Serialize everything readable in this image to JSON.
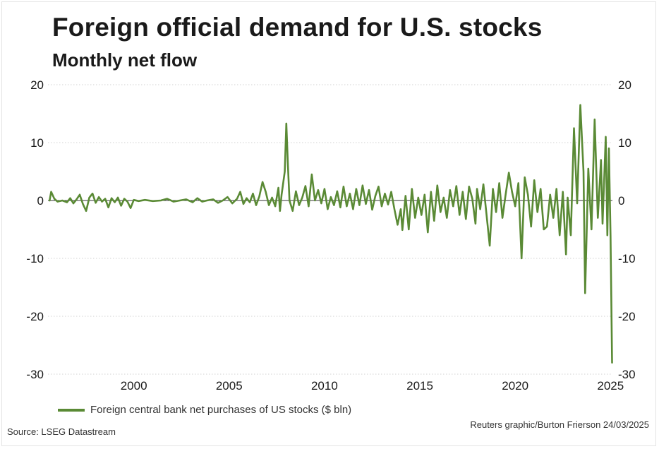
{
  "title": "Foreign official demand for U.S. stocks",
  "subtitle": "Monthly net flow",
  "legend_label": "Foreign central bank net purchases of US stocks ($ bln)",
  "source": "Source: LSEG Datastream",
  "credit": "Reuters graphic/Burton Frierson 24/03/2025",
  "colors": {
    "line": "#5a8a35",
    "grid": "#d2d2d2",
    "zero": "#333333",
    "text": "#1a1a1a"
  },
  "chart_data": {
    "type": "line",
    "title": "Foreign official demand for U.S. stocks",
    "subtitle": "Monthly net flow",
    "xlabel": "",
    "ylabel": "",
    "ylim": [
      -30,
      20
    ],
    "xlim": [
      1995.5,
      2025.1
    ],
    "y_ticks": [
      "20",
      "10",
      "0",
      "-10",
      "-20",
      "-30"
    ],
    "x_ticks": [
      "2000",
      "2005",
      "2010",
      "2015",
      "2020",
      "2025"
    ],
    "grid": "horizontal",
    "y_axis_both_sides": true,
    "legend_position": "bottom-left",
    "series": [
      {
        "name": "Foreign central bank net purchases of US stocks ($ bln)",
        "points": [
          [
            "1995-08",
            0
          ],
          [
            "1995-09",
            1.5
          ],
          [
            "1995-11",
            0.3
          ],
          [
            "1996-01",
            -0.2
          ],
          [
            "1996-04",
            0
          ],
          [
            "1996-07",
            -0.3
          ],
          [
            "1996-09",
            0.4
          ],
          [
            "1996-11",
            -0.5
          ],
          [
            "1997-01",
            0.2
          ],
          [
            "1997-03",
            1.0
          ],
          [
            "1997-05",
            -0.6
          ],
          [
            "1997-07",
            -1.8
          ],
          [
            "1997-09",
            0.5
          ],
          [
            "1997-11",
            1.2
          ],
          [
            "1998-01",
            -0.4
          ],
          [
            "1998-03",
            0.6
          ],
          [
            "1998-05",
            -0.2
          ],
          [
            "1998-07",
            0.3
          ],
          [
            "1998-09",
            -1.2
          ],
          [
            "1998-11",
            0.4
          ],
          [
            "1999-01",
            -0.3
          ],
          [
            "1999-03",
            0.5
          ],
          [
            "1999-05",
            -0.9
          ],
          [
            "1999-07",
            0.3
          ],
          [
            "1999-09",
            -0.2
          ],
          [
            "1999-11",
            -1.3
          ],
          [
            "2000-01",
            0.1
          ],
          [
            "2000-04",
            -0.1
          ],
          [
            "2000-08",
            0.1
          ],
          [
            "2001-01",
            -0.1
          ],
          [
            "2001-06",
            0
          ],
          [
            "2001-10",
            0.3
          ],
          [
            "2002-02",
            -0.2
          ],
          [
            "2002-06",
            0
          ],
          [
            "2002-10",
            0.2
          ],
          [
            "2003-02",
            -0.3
          ],
          [
            "2003-05",
            0.4
          ],
          [
            "2003-08",
            -0.2
          ],
          [
            "2003-11",
            0
          ],
          [
            "2004-03",
            0.2
          ],
          [
            "2004-06",
            -0.4
          ],
          [
            "2004-09",
            0
          ],
          [
            "2004-12",
            0.6
          ],
          [
            "2005-03",
            -0.5
          ],
          [
            "2005-06",
            0.3
          ],
          [
            "2005-08",
            1.5
          ],
          [
            "2005-10",
            -0.6
          ],
          [
            "2005-12",
            0.4
          ],
          [
            "2006-02",
            -0.3
          ],
          [
            "2006-04",
            1.2
          ],
          [
            "2006-06",
            -0.8
          ],
          [
            "2006-08",
            0.7
          ],
          [
            "2006-10",
            3.2
          ],
          [
            "2006-12",
            1.5
          ],
          [
            "2007-02",
            -0.8
          ],
          [
            "2007-04",
            0.5
          ],
          [
            "2007-06",
            -1.0
          ],
          [
            "2007-08",
            2.2
          ],
          [
            "2007-09",
            -1.8
          ],
          [
            "2007-10",
            1.0
          ],
          [
            "2007-12",
            5.0
          ],
          [
            "2008-01",
            13.3
          ],
          [
            "2008-02",
            6.0
          ],
          [
            "2008-03",
            0
          ],
          [
            "2008-05",
            -1.8
          ],
          [
            "2008-07",
            1.6
          ],
          [
            "2008-09",
            -0.8
          ],
          [
            "2008-11",
            0.5
          ],
          [
            "2009-01",
            2.5
          ],
          [
            "2009-03",
            -1.0
          ],
          [
            "2009-05",
            4.5
          ],
          [
            "2009-07",
            0
          ],
          [
            "2009-09",
            1.8
          ],
          [
            "2009-11",
            -0.5
          ],
          [
            "2010-01",
            2.0
          ],
          [
            "2010-03",
            -1.5
          ],
          [
            "2010-05",
            0.6
          ],
          [
            "2010-07",
            -0.8
          ],
          [
            "2010-09",
            1.6
          ],
          [
            "2010-11",
            -1.2
          ],
          [
            "2011-01",
            2.4
          ],
          [
            "2011-03",
            -1.0
          ],
          [
            "2011-05",
            1.2
          ],
          [
            "2011-07",
            -1.5
          ],
          [
            "2011-09",
            2.0
          ],
          [
            "2011-11",
            -0.8
          ],
          [
            "2012-01",
            2.6
          ],
          [
            "2012-03",
            -0.6
          ],
          [
            "2012-05",
            1.8
          ],
          [
            "2012-07",
            -1.6
          ],
          [
            "2012-09",
            0.8
          ],
          [
            "2012-11",
            2.4
          ],
          [
            "2013-01",
            -1.0
          ],
          [
            "2013-03",
            1.2
          ],
          [
            "2013-05",
            -0.7
          ],
          [
            "2013-07",
            1.5
          ],
          [
            "2013-09",
            -1.5
          ],
          [
            "2013-11",
            -4.2
          ],
          [
            "2014-01",
            -1.5
          ],
          [
            "2014-02",
            -5.1
          ],
          [
            "2014-04",
            0.8
          ],
          [
            "2014-06",
            -5.0
          ],
          [
            "2014-08",
            2.0
          ],
          [
            "2014-10",
            -3.0
          ],
          [
            "2014-12",
            0.5
          ],
          [
            "2015-02",
            -2.5
          ],
          [
            "2015-04",
            1.0
          ],
          [
            "2015-06",
            -5.5
          ],
          [
            "2015-08",
            1.5
          ],
          [
            "2015-10",
            -3.5
          ],
          [
            "2015-12",
            2.6
          ],
          [
            "2016-02",
            -2.0
          ],
          [
            "2016-04",
            0.5
          ],
          [
            "2016-06",
            -3.0
          ],
          [
            "2016-08",
            1.8
          ],
          [
            "2016-10",
            -1.0
          ],
          [
            "2016-12",
            2.5
          ],
          [
            "2017-02",
            -2.5
          ],
          [
            "2017-04",
            1.5
          ],
          [
            "2017-06",
            -3.2
          ],
          [
            "2017-08",
            2.4
          ],
          [
            "2017-10",
            0.3
          ],
          [
            "2017-12",
            -4.0
          ],
          [
            "2018-01",
            2.0
          ],
          [
            "2018-03",
            -1.5
          ],
          [
            "2018-05",
            2.8
          ],
          [
            "2018-07",
            -2.5
          ],
          [
            "2018-09",
            -7.8
          ],
          [
            "2018-11",
            2.0
          ],
          [
            "2019-01",
            -2.0
          ],
          [
            "2019-03",
            3.0
          ],
          [
            "2019-05",
            -3.0
          ],
          [
            "2019-07",
            1.0
          ],
          [
            "2019-09",
            4.8
          ],
          [
            "2019-11",
            1.5
          ],
          [
            "2020-01",
            -1.0
          ],
          [
            "2020-03",
            3.0
          ],
          [
            "2020-05",
            -10.0
          ],
          [
            "2020-07",
            4.0
          ],
          [
            "2020-09",
            1.0
          ],
          [
            "2020-11",
            -4.5
          ],
          [
            "2021-01",
            3.5
          ],
          [
            "2021-03",
            -2.0
          ],
          [
            "2021-05",
            2.0
          ],
          [
            "2021-07",
            -5.0
          ],
          [
            "2021-09",
            -4.5
          ],
          [
            "2021-11",
            1.0
          ],
          [
            "2022-01",
            -3.0
          ],
          [
            "2022-03",
            2.0
          ],
          [
            "2022-05",
            -6.0
          ],
          [
            "2022-07",
            1.5
          ],
          [
            "2022-09",
            -9.3
          ],
          [
            "2022-10",
            0.5
          ],
          [
            "2022-12",
            -6.0
          ],
          [
            "2023-02",
            12.5
          ],
          [
            "2023-04",
            -0.5
          ],
          [
            "2023-06",
            16.5
          ],
          [
            "2023-08",
            5.0
          ],
          [
            "2023-09",
            -16.0
          ],
          [
            "2023-11",
            5.5
          ],
          [
            "2024-01",
            -5.0
          ],
          [
            "2024-03",
            14.0
          ],
          [
            "2024-05",
            -3.0
          ],
          [
            "2024-07",
            7.0
          ],
          [
            "2024-08",
            -4.0
          ],
          [
            "2024-10",
            11.0
          ],
          [
            "2024-11",
            -6.0
          ],
          [
            "2024-12",
            9.0
          ],
          [
            "2025-01",
            -6.0
          ],
          [
            "2025-02",
            -28.0
          ]
        ]
      }
    ]
  }
}
